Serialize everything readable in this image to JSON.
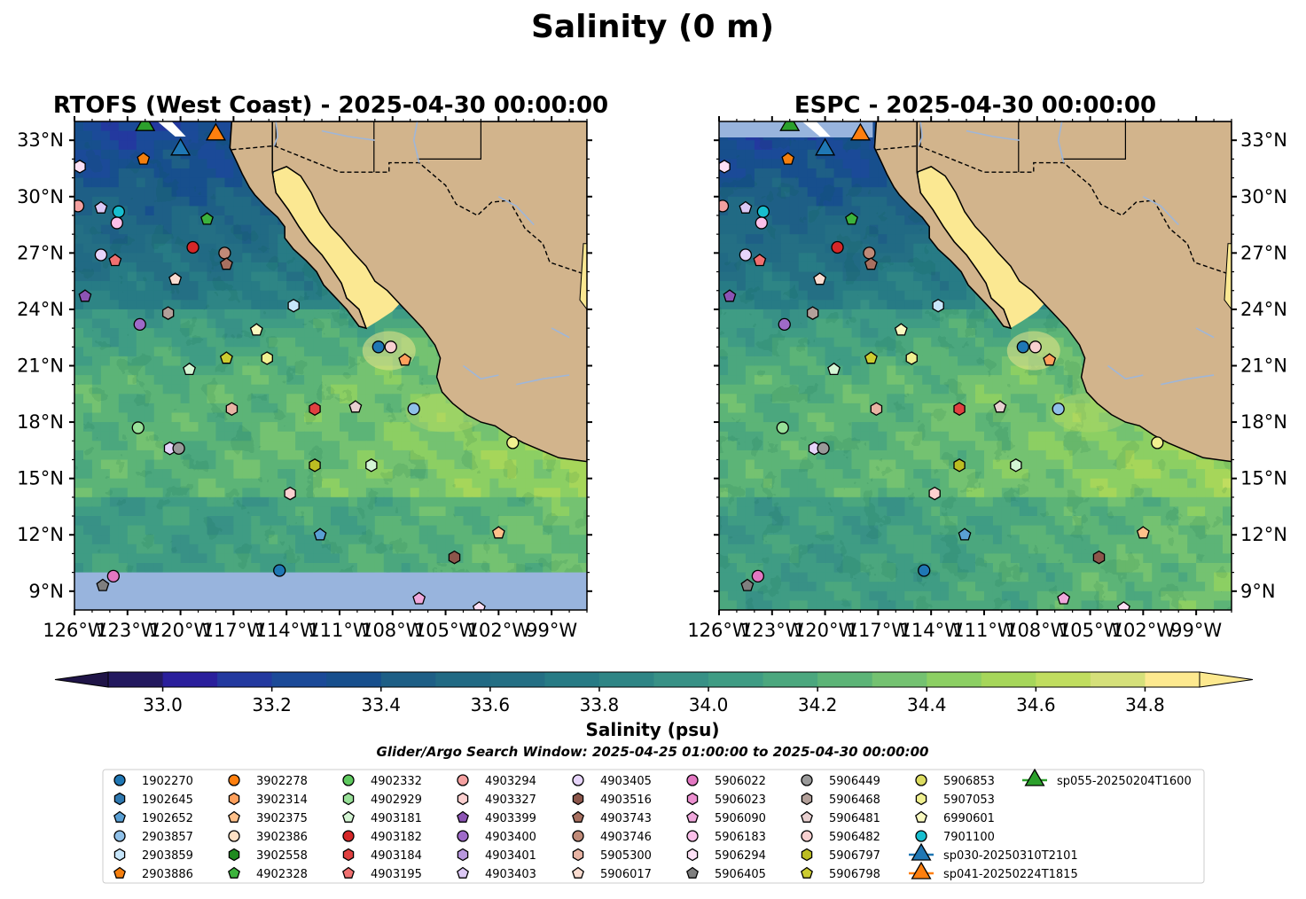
{
  "figure": {
    "suptitle": "Salinity (0 m)",
    "search_window": "Glider/Argo Search Window: 2025-04-25 01:00:00 to 2025-04-30 00:00:00"
  },
  "chart_data": [
    {
      "type": "heatmap",
      "title": "RTOFS (West Coast) - 2025-04-30 00:00:00",
      "xlabel": "",
      "ylabel": "",
      "xlim": [
        -126,
        -97
      ],
      "ylim": [
        8,
        34
      ],
      "x_ticks": [
        "126°W",
        "123°W",
        "120°W",
        "117°W",
        "114°W",
        "111°W",
        "108°W",
        "105°W",
        "102°W",
        "99°W"
      ],
      "y_ticks": [
        "9°N",
        "12°N",
        "15°N",
        "18°N",
        "21°N",
        "24°N",
        "27°N",
        "30°N",
        "33°N"
      ],
      "y_tick_side": "left",
      "no_data_band_south_of_lat": 10,
      "land_color": "#d2b48c",
      "no_data_color": "#98b4dd"
    },
    {
      "type": "heatmap",
      "title": "ESPC - 2025-04-30 00:00:00",
      "xlabel": "",
      "ylabel": "",
      "xlim": [
        -126,
        -97
      ],
      "ylim": [
        8,
        34
      ],
      "x_ticks": [
        "126°W",
        "123°W",
        "120°W",
        "117°W",
        "114°W",
        "111°W",
        "108°W",
        "105°W",
        "102°W",
        "99°W"
      ],
      "y_ticks": [
        "9°N",
        "12°N",
        "15°N",
        "18°N",
        "21°N",
        "24°N",
        "27°N",
        "30°N",
        "33°N"
      ],
      "y_tick_side": "right",
      "no_data_band_south_of_lat": null,
      "land_color": "#d2b48c",
      "no_data_color": "#98b4dd"
    }
  ],
  "colorbar": {
    "label": "Salinity (psu)",
    "min": 32.9,
    "max": 34.9,
    "step": 0.1,
    "ticks": [
      "33.0",
      "33.2",
      "33.4",
      "33.6",
      "33.8",
      "34.0",
      "34.2",
      "34.4",
      "34.6",
      "34.8"
    ],
    "tick_values": [
      33.0,
      33.2,
      33.4,
      33.6,
      33.8,
      34.0,
      34.2,
      34.4,
      34.6,
      34.8
    ],
    "colors": [
      "#23195f",
      "#2a1f9c",
      "#23399f",
      "#1b4a98",
      "#174f8d",
      "#1e5f86",
      "#216a84",
      "#246f84",
      "#277b85",
      "#2e8585",
      "#389186",
      "#3f9c84",
      "#4ba77e",
      "#5cb477",
      "#74c271",
      "#8ccf63",
      "#a6d65a",
      "#c0dd5f",
      "#d5e07a",
      "#fde98f"
    ],
    "under_color": "#1f1447",
    "over_color": "#fde98f"
  },
  "legend": {
    "items": [
      {
        "label": "1902270",
        "marker": "circle",
        "color": "#1f77b4"
      },
      {
        "label": "1902645",
        "marker": "hexagon",
        "color": "#2f79b0"
      },
      {
        "label": "1902652",
        "marker": "pentagon",
        "color": "#5aa0d4"
      },
      {
        "label": "2903857",
        "marker": "circle",
        "color": "#8fc0e8"
      },
      {
        "label": "2903859",
        "marker": "hexagon",
        "color": "#c7e6fb"
      },
      {
        "label": "2903886",
        "marker": "pentagon",
        "color": "#f57f0e"
      },
      {
        "label": "3902278",
        "marker": "circle",
        "color": "#ff7f0e"
      },
      {
        "label": "3902314",
        "marker": "hexagon",
        "color": "#ffa05c"
      },
      {
        "label": "3902375",
        "marker": "pentagon",
        "color": "#ffc08a"
      },
      {
        "label": "3902386",
        "marker": "circle",
        "color": "#ffe0c4"
      },
      {
        "label": "3902558",
        "marker": "hexagon",
        "color": "#1f8a1f"
      },
      {
        "label": "4902328",
        "marker": "pentagon",
        "color": "#3cb33c"
      },
      {
        "label": "4902332",
        "marker": "circle",
        "color": "#5ec95e"
      },
      {
        "label": "4902929",
        "marker": "hexagon",
        "color": "#98e098"
      },
      {
        "label": "4903181",
        "marker": "pentagon",
        "color": "#d4f5d4"
      },
      {
        "label": "4903182",
        "marker": "circle",
        "color": "#d62728"
      },
      {
        "label": "4903184",
        "marker": "hexagon",
        "color": "#e04040"
      },
      {
        "label": "4903195",
        "marker": "pentagon",
        "color": "#f07070"
      },
      {
        "label": "4903294",
        "marker": "circle",
        "color": "#f4a0a0"
      },
      {
        "label": "4903327",
        "marker": "hexagon",
        "color": "#fcd0d0"
      },
      {
        "label": "4903399",
        "marker": "pentagon",
        "color": "#8c54b4"
      },
      {
        "label": "4903400",
        "marker": "circle",
        "color": "#9e6ac8"
      },
      {
        "label": "4903401",
        "marker": "hexagon",
        "color": "#b898de"
      },
      {
        "label": "4903403",
        "marker": "pentagon",
        "color": "#dcc8f5"
      },
      {
        "label": "4903405",
        "marker": "circle",
        "color": "#e6d4fa"
      },
      {
        "label": "4903516",
        "marker": "hexagon",
        "color": "#8c564b"
      },
      {
        "label": "4903743",
        "marker": "pentagon",
        "color": "#a87060"
      },
      {
        "label": "4903746",
        "marker": "circle",
        "color": "#c08a78"
      },
      {
        "label": "5905300",
        "marker": "hexagon",
        "color": "#e8b4a4"
      },
      {
        "label": "5906017",
        "marker": "pentagon",
        "color": "#fadcd0"
      },
      {
        "label": "5906022",
        "marker": "circle",
        "color": "#e377c2"
      },
      {
        "label": "5906023",
        "marker": "hexagon",
        "color": "#ec90d0"
      },
      {
        "label": "5906090",
        "marker": "pentagon",
        "color": "#f0a8dc"
      },
      {
        "label": "5906183",
        "marker": "circle",
        "color": "#fbc0ea"
      },
      {
        "label": "5906294",
        "marker": "hexagon",
        "color": "#fde0f5"
      },
      {
        "label": "5906405",
        "marker": "pentagon",
        "color": "#7f7f7f"
      },
      {
        "label": "5906449",
        "marker": "circle",
        "color": "#999999"
      },
      {
        "label": "5906468",
        "marker": "hexagon",
        "color": "#b3a09a"
      },
      {
        "label": "5906481",
        "marker": "pentagon",
        "color": "#e8d0d0"
      },
      {
        "label": "5906482",
        "marker": "circle",
        "color": "#f8d0d0"
      },
      {
        "label": "5906797",
        "marker": "hexagon",
        "color": "#bcbd22"
      },
      {
        "label": "5906798",
        "marker": "pentagon",
        "color": "#cccc30"
      },
      {
        "label": "5906853",
        "marker": "circle",
        "color": "#dcdc60"
      },
      {
        "label": "5907053",
        "marker": "hexagon",
        "color": "#f0f090"
      },
      {
        "label": "6990601",
        "marker": "pentagon",
        "color": "#fafac0"
      },
      {
        "label": "7901100",
        "marker": "circle",
        "color": "#17becf"
      },
      {
        "label": "sp030-20250310T2101",
        "marker": "triangle-line",
        "color": "#1f77b4"
      },
      {
        "label": "sp041-20250224T1815",
        "marker": "triangle-line",
        "color": "#ff7f0e"
      },
      {
        "label": "sp055-20250204T1600",
        "marker": "triangle-line",
        "color": "#2ca02c"
      }
    ]
  },
  "floats": [
    {
      "lon": -125.7,
      "lat": 31.6,
      "marker": "hexagon",
      "color": "#fde0f5"
    },
    {
      "lon": -125.8,
      "lat": 29.5,
      "marker": "circle",
      "color": "#f4a0a0"
    },
    {
      "lon": -124.5,
      "lat": 29.4,
      "marker": "pentagon",
      "color": "#dcc8f5"
    },
    {
      "lon": -123.5,
      "lat": 29.2,
      "marker": "circle",
      "color": "#17becf"
    },
    {
      "lon": -123.6,
      "lat": 28.6,
      "marker": "circle",
      "color": "#fbc0ea"
    },
    {
      "lon": -124.5,
      "lat": 26.9,
      "marker": "circle",
      "color": "#e6d4fa"
    },
    {
      "lon": -123.7,
      "lat": 26.6,
      "marker": "pentagon",
      "color": "#f07070"
    },
    {
      "lon": -125.4,
      "lat": 24.7,
      "marker": "pentagon",
      "color": "#8c54b4"
    },
    {
      "lon": -122.3,
      "lat": 23.2,
      "marker": "circle",
      "color": "#9e6ac8"
    },
    {
      "lon": -120.7,
      "lat": 23.8,
      "marker": "hexagon",
      "color": "#b3a09a"
    },
    {
      "lon": -120.3,
      "lat": 25.6,
      "marker": "pentagon",
      "color": "#fadcd0"
    },
    {
      "lon": -119.3,
      "lat": 27.3,
      "marker": "circle",
      "color": "#d62728"
    },
    {
      "lon": -118.5,
      "lat": 28.8,
      "marker": "pentagon",
      "color": "#3cb33c"
    },
    {
      "lon": -122.1,
      "lat": 32.0,
      "marker": "pentagon",
      "color": "#f57f0e"
    },
    {
      "lon": -117.5,
      "lat": 27.0,
      "marker": "circle",
      "color": "#c08a78"
    },
    {
      "lon": -117.4,
      "lat": 26.4,
      "marker": "pentagon",
      "color": "#a87060"
    },
    {
      "lon": -113.6,
      "lat": 24.2,
      "marker": "hexagon",
      "color": "#c7e6fb"
    },
    {
      "lon": -115.7,
      "lat": 22.9,
      "marker": "pentagon",
      "color": "#fafac0"
    },
    {
      "lon": -117.4,
      "lat": 21.4,
      "marker": "pentagon",
      "color": "#cccc30"
    },
    {
      "lon": -115.1,
      "lat": 21.4,
      "marker": "hexagon",
      "color": "#f0f090"
    },
    {
      "lon": -119.5,
      "lat": 20.8,
      "marker": "pentagon",
      "color": "#d4f5d4"
    },
    {
      "lon": -117.1,
      "lat": 18.7,
      "marker": "hexagon",
      "color": "#e8b4a4"
    },
    {
      "lon": -112.4,
      "lat": 18.7,
      "marker": "hexagon",
      "color": "#e04040"
    },
    {
      "lon": -110.1,
      "lat": 18.8,
      "marker": "pentagon",
      "color": "#e8d0d0"
    },
    {
      "lon": -106.8,
      "lat": 18.7,
      "marker": "circle",
      "color": "#8fc0e8"
    },
    {
      "lon": -122.4,
      "lat": 17.7,
      "marker": "circle",
      "color": "#98e098"
    },
    {
      "lon": -120.6,
      "lat": 16.6,
      "marker": "hexagon",
      "color": "#e6d4fa"
    },
    {
      "lon": -120.1,
      "lat": 16.6,
      "marker": "circle",
      "color": "#999999"
    },
    {
      "lon": -112.4,
      "lat": 15.7,
      "marker": "hexagon",
      "color": "#bcbd22"
    },
    {
      "lon": -109.2,
      "lat": 15.7,
      "marker": "hexagon",
      "color": "#d4f5d4"
    },
    {
      "lon": -101.2,
      "lat": 16.9,
      "marker": "circle",
      "color": "#f0f090"
    },
    {
      "lon": -113.8,
      "lat": 14.2,
      "marker": "hexagon",
      "color": "#fcd0d0"
    },
    {
      "lon": -112.1,
      "lat": 12.0,
      "marker": "pentagon",
      "color": "#5aa0d4"
    },
    {
      "lon": -102.0,
      "lat": 12.1,
      "marker": "pentagon",
      "color": "#ffc08a"
    },
    {
      "lon": -104.5,
      "lat": 10.8,
      "marker": "hexagon",
      "color": "#8c564b"
    },
    {
      "lon": -114.4,
      "lat": 10.1,
      "marker": "circle",
      "color": "#1f77b4"
    },
    {
      "lon": -123.8,
      "lat": 9.8,
      "marker": "circle",
      "color": "#e377c2"
    },
    {
      "lon": -124.4,
      "lat": 9.3,
      "marker": "pentagon",
      "color": "#7f7f7f"
    },
    {
      "lon": -106.5,
      "lat": 8.6,
      "marker": "pentagon",
      "color": "#f0a8dc"
    },
    {
      "lon": -103.1,
      "lat": 8.1,
      "marker": "pentagon",
      "color": "#fde0f5"
    },
    {
      "lon": -108.8,
      "lat": 22.0,
      "marker": "circle",
      "color": "#1f77b4"
    },
    {
      "lon": -108.1,
      "lat": 22.0,
      "marker": "circle",
      "color": "#f8d0d0"
    },
    {
      "lon": -107.3,
      "lat": 21.3,
      "marker": "pentagon",
      "color": "#ffa05c"
    }
  ],
  "gliders": [
    {
      "lon": -120.0,
      "lat": 32.5,
      "color": "#1f77b4"
    },
    {
      "lon": -118.0,
      "lat": 33.3,
      "color": "#ff7f0e"
    },
    {
      "lon": -122.0,
      "lat": 33.8,
      "color": "#2ca02c"
    }
  ]
}
